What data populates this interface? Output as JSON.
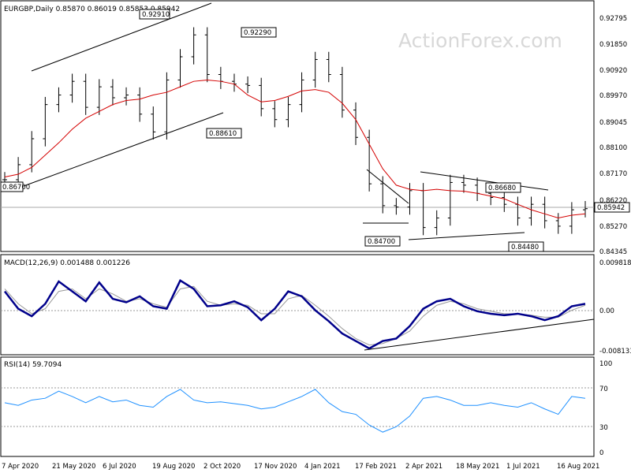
{
  "chart_data": [
    {
      "type": "ohlc",
      "title": "EURGBP,Daily  0.85870 0.86019 0.85853 0.85942",
      "watermark": "ActionForex.com",
      "last_price": "0.85942",
      "ylim": [
        0.84345,
        0.93
      ],
      "yticks": [
        "0.92795",
        "0.91850",
        "0.90920",
        "0.89970",
        "0.89045",
        "0.88100",
        "0.87170",
        "0.86220",
        "0.85270",
        "0.84345"
      ],
      "xticks": [
        "7 Apr 2020",
        "21 May 2020",
        "6 Jul 2020",
        "19 Aug 2020",
        "2 Oct 2020",
        "17 Nov 2020",
        "4 Jan 2021",
        "17 Feb 2021",
        "2 Apr 2021",
        "18 May 2021",
        "1 Jul 2021",
        "16 Aug 2021"
      ],
      "annotations": [
        "0.92910",
        "0.92290",
        "0.88610",
        "0.86700",
        "0.84700",
        "0.86680",
        "0.84480"
      ],
      "price_close": [
        0.87,
        0.8755,
        0.885,
        0.8975,
        0.901,
        0.906,
        0.8965,
        0.904,
        0.9,
        0.901,
        0.894,
        0.8875,
        0.9065,
        0.915,
        0.923,
        0.9085,
        0.906,
        0.905,
        0.9045,
        0.896,
        0.892,
        0.8975,
        0.9065,
        0.914,
        0.9085,
        0.8955,
        0.8855,
        0.8685,
        0.8605,
        0.86,
        0.866,
        0.8525,
        0.856,
        0.869,
        0.868,
        0.865,
        0.8635,
        0.861,
        0.856,
        0.861,
        0.855,
        0.853,
        0.859,
        0.8594
      ],
      "ma_close": [
        0.871,
        0.872,
        0.8745,
        0.879,
        0.8835,
        0.8885,
        0.8925,
        0.895,
        0.8975,
        0.899,
        0.8995,
        0.901,
        0.902,
        0.904,
        0.906,
        0.9065,
        0.906,
        0.905,
        0.901,
        0.8985,
        0.899,
        0.9005,
        0.9025,
        0.903,
        0.902,
        0.898,
        0.892,
        0.883,
        0.874,
        0.868,
        0.8665,
        0.866,
        0.8665,
        0.866,
        0.8658,
        0.865,
        0.864,
        0.863,
        0.861,
        0.859,
        0.8575,
        0.856,
        0.857,
        0.8575
      ]
    },
    {
      "type": "line",
      "title": "MACD(12,26,9) 0.001488 0.001226",
      "ylim": [
        -0.008133,
        0.009818
      ],
      "yticks": [
        "0.009818",
        "0.00",
        "-0.008133"
      ],
      "macd": [
        0.004,
        0.0005,
        -0.001,
        0.0015,
        0.006,
        0.004,
        0.002,
        0.0058,
        0.0025,
        0.0018,
        0.003,
        0.001,
        0.0005,
        0.0062,
        0.0045,
        0.001,
        0.0012,
        0.002,
        0.0008,
        -0.0018,
        0.0005,
        0.004,
        0.003,
        0.0002,
        -0.002,
        -0.0045,
        -0.006,
        -0.0075,
        -0.006,
        -0.0055,
        -0.003,
        0.0005,
        0.002,
        0.0025,
        0.001,
        0.0,
        -0.0005,
        -0.0008,
        -0.0005,
        -0.001,
        -0.0018,
        -0.001,
        0.001,
        0.0015
      ],
      "signal": [
        0.0045,
        0.0015,
        -0.0005,
        0.0005,
        0.004,
        0.0045,
        0.0025,
        0.0045,
        0.0035,
        0.002,
        0.0025,
        0.0015,
        0.0008,
        0.0045,
        0.005,
        0.002,
        0.0012,
        0.0015,
        0.0012,
        -0.0005,
        -0.0005,
        0.0025,
        0.0032,
        0.0012,
        -0.001,
        -0.0035,
        -0.0055,
        -0.0068,
        -0.0065,
        -0.0055,
        -0.004,
        -0.001,
        0.0012,
        0.002,
        0.0015,
        0.0005,
        0.0,
        -0.0005,
        -0.0005,
        -0.0008,
        -0.0012,
        -0.0012,
        0.0002,
        0.0012
      ]
    },
    {
      "type": "line",
      "title": "RSI(14) 59.7094",
      "ylim": [
        0,
        100
      ],
      "yticks": [
        "100",
        "70",
        "30",
        "0"
      ],
      "rsi": [
        55,
        52,
        58,
        60,
        68,
        62,
        55,
        62,
        56,
        58,
        52,
        50,
        62,
        70,
        58,
        55,
        56,
        54,
        52,
        48,
        50,
        56,
        62,
        70,
        55,
        45,
        42,
        30,
        22,
        28,
        40,
        60,
        62,
        58,
        52,
        52,
        55,
        52,
        50,
        55,
        48,
        42,
        62,
        60
      ]
    }
  ]
}
